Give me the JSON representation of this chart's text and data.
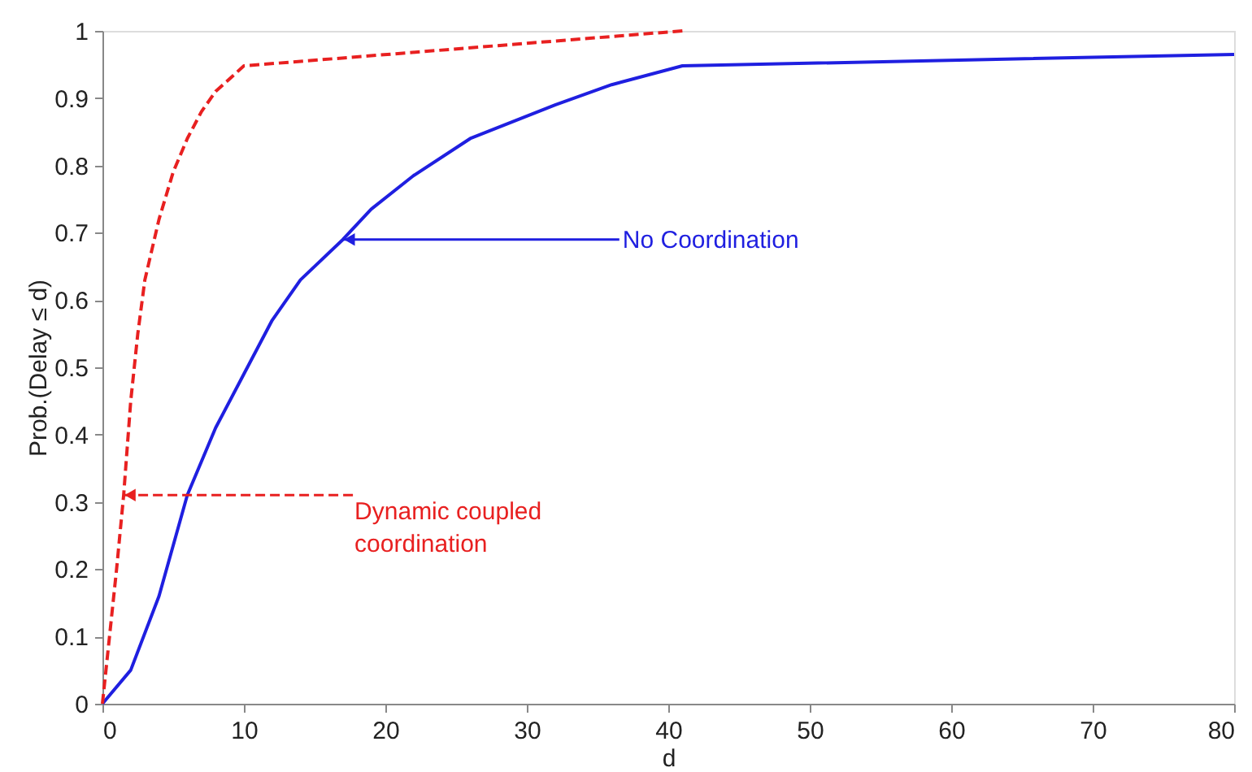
{
  "chart_data": {
    "type": "line",
    "xlabel": "d",
    "ylabel": "Prob.(Delay ≤ d)",
    "xlim": [
      0,
      80
    ],
    "xticks": [
      0,
      10,
      20,
      30,
      40,
      50,
      60,
      70,
      80
    ],
    "ylim": [
      0,
      1
    ],
    "yticks": [
      0,
      0.1,
      0.2,
      0.3,
      0.4,
      0.5,
      0.6,
      0.7,
      0.8,
      0.9,
      1
    ],
    "grid": false,
    "marker": "none",
    "series": [
      {
        "color": "#1f1fe0",
        "line_style": "solid",
        "x": [
          0,
          2,
          4,
          6,
          8,
          10,
          12,
          14,
          17,
          19,
          22,
          26,
          32,
          36,
          41,
          80
        ],
        "values": [
          0,
          0.05,
          0.16,
          0.31,
          0.41,
          0.49,
          0.57,
          0.63,
          0.69,
          0.735,
          0.785,
          0.84,
          0.89,
          0.92,
          0.948,
          0.965
        ]
      },
      {
        "color": "#e82020",
        "line_style": "dashed",
        "x": [
          0,
          0.5,
          1,
          1.5,
          2,
          2.5,
          3,
          4,
          5,
          6,
          7,
          8,
          10,
          41
        ],
        "values": [
          0,
          0.1,
          0.2,
          0.31,
          0.45,
          0.55,
          0.63,
          0.72,
          0.79,
          0.84,
          0.88,
          0.91,
          0.948,
          1.0
        ]
      }
    ],
    "annotations": [
      {
        "text": "No Coordination",
        "x": 17,
        "y": 0.69
      },
      {
        "text": "Dynamic coupled\ncoordination",
        "x": 1.5,
        "y": 0.31
      }
    ]
  }
}
